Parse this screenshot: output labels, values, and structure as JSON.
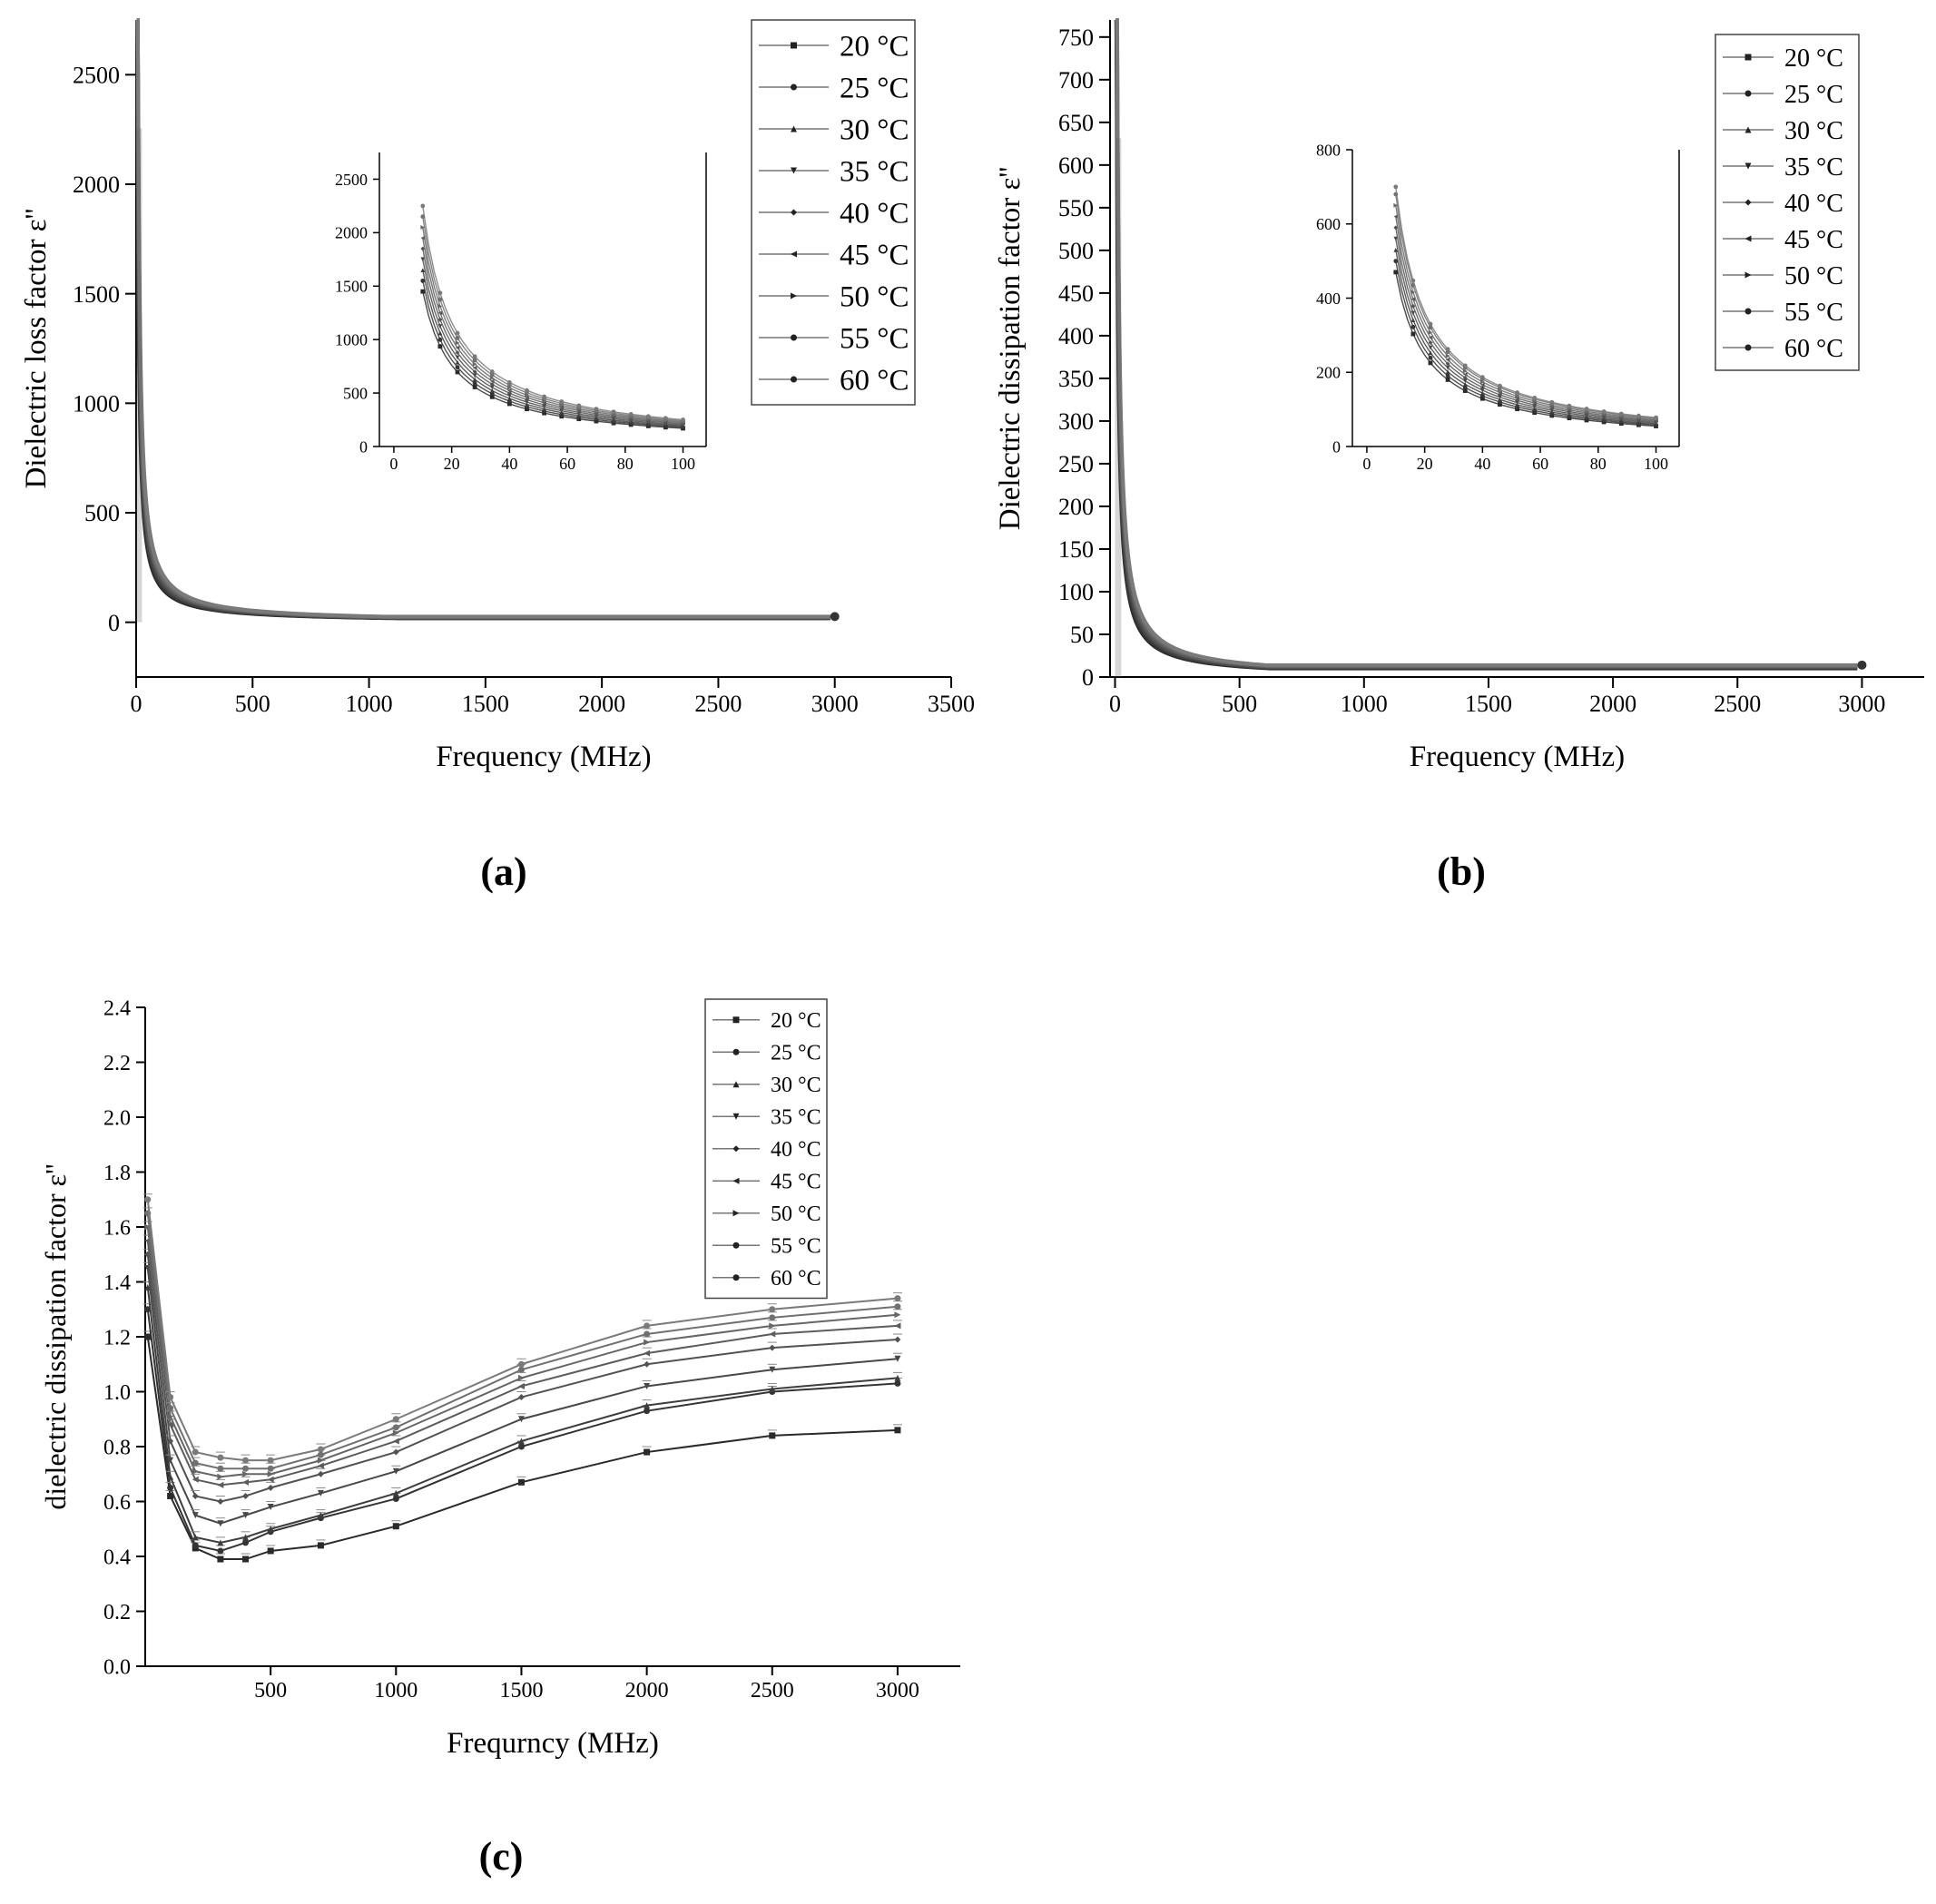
{
  "figure": {
    "panels": [
      "a",
      "b",
      "c"
    ],
    "panel_labels": {
      "a": "(a)",
      "b": "(b)",
      "c": "(c)"
    }
  },
  "temperatures": [
    "20 °C",
    "25 °C",
    "30 °C",
    "35 °C",
    "40 °C",
    "45 °C",
    "50 °C",
    "55 °C",
    "60 °C"
  ],
  "chart_data": [
    {
      "id": "a",
      "type": "line",
      "title": "",
      "panel_label": "(a)",
      "xlabel": "Frequency (MHz)",
      "ylabel": "Dielectric loss factor ε''",
      "xlim": [
        0,
        3500
      ],
      "ylim": [
        -250,
        2750
      ],
      "xticks": [
        0,
        500,
        1000,
        1500,
        2000,
        2500,
        3000,
        3500
      ],
      "yticks": [
        0,
        500,
        1000,
        1500,
        2000,
        2500
      ],
      "legend": [
        "20 °C",
        "25 °C",
        "30 °C",
        "35 °C",
        "40 °C",
        "45 °C",
        "50 °C",
        "55 °C",
        "60 °C"
      ],
      "legend_position": "top-right",
      "model": {
        "family": "power",
        "x_end": 3000,
        "amp10": [
          1450,
          1550,
          1650,
          1750,
          1850,
          1950,
          2050,
          2150,
          2250
        ],
        "amp100": [
          170,
          180,
          190,
          200,
          210,
          220,
          230,
          240,
          250
        ],
        "floor": [
          18,
          19,
          20,
          21,
          22,
          23,
          24,
          25,
          26
        ]
      },
      "inset": {
        "xlim": [
          -5,
          108
        ],
        "ylim": [
          0,
          2750
        ],
        "xticks": [
          0,
          20,
          40,
          60,
          80,
          100
        ],
        "yticks": [
          0,
          500,
          1000,
          1500,
          2000,
          2500
        ],
        "x_range": [
          10,
          100
        ]
      }
    },
    {
      "id": "b",
      "type": "line",
      "title": "",
      "panel_label": "(b)",
      "xlabel": "Frequency (MHz)",
      "ylabel": "Dielectric dissipation factor ε''",
      "xlim": [
        -20,
        3250
      ],
      "ylim": [
        0,
        770
      ],
      "xticks": [
        0,
        500,
        1000,
        1500,
        2000,
        2500,
        3000
      ],
      "yticks": [
        0,
        50,
        100,
        150,
        200,
        250,
        300,
        350,
        400,
        450,
        500,
        550,
        600,
        650,
        700,
        750
      ],
      "legend": [
        "20 °C",
        "25 °C",
        "30 °C",
        "35 °C",
        "40 °C",
        "45 °C",
        "50 °C",
        "55 °C",
        "60 °C"
      ],
      "legend_position": "top-right",
      "model": {
        "family": "power",
        "x_end": 3000,
        "amp10": [
          470,
          500,
          530,
          560,
          590,
          620,
          650,
          680,
          700
        ],
        "amp100": [
          55,
          58,
          61,
          64,
          67,
          70,
          73,
          76,
          78
        ],
        "floor": [
          10,
          10.5,
          11,
          11.5,
          12,
          12.5,
          13,
          13.5,
          14
        ]
      },
      "inset": {
        "xlim": [
          -5,
          108
        ],
        "ylim": [
          0,
          800
        ],
        "xticks": [
          0,
          20,
          40,
          60,
          80,
          100
        ],
        "yticks": [
          0,
          200,
          400,
          600,
          800
        ],
        "x_range": [
          10,
          100
        ]
      }
    },
    {
      "id": "c",
      "type": "line",
      "title": "",
      "panel_label": "(c)",
      "xlabel": "Frequrncy (MHz)",
      "ylabel": "dielectric dissipation factor ε''",
      "xlim": [
        0,
        3250
      ],
      "ylim": [
        0,
        2.4
      ],
      "xticks": [
        500,
        1000,
        1500,
        2000,
        2500,
        3000
      ],
      "yticks": [
        0.0,
        0.2,
        0.4,
        0.6,
        0.8,
        1.0,
        1.2,
        1.4,
        1.6,
        1.8,
        2.0,
        2.2,
        2.4
      ],
      "ytick_labels": [
        "0.0",
        "0.2",
        "0.4",
        "0.6",
        "0.8",
        "1.0",
        "1.2",
        "1.4",
        "1.6",
        "1.8",
        "2.0",
        "2.2",
        "2.4"
      ],
      "legend": [
        "20 °C",
        "25 °C",
        "30 °C",
        "35 °C",
        "40 °C",
        "45 °C",
        "50 °C",
        "55 °C",
        "60 °C"
      ],
      "legend_position": "top-right",
      "series": [
        {
          "name": "20 °C",
          "x": [
            10,
            100,
            200,
            300,
            400,
            500,
            700,
            1000,
            1500,
            2000,
            2500,
            3000
          ],
          "values": [
            1.2,
            0.62,
            0.43,
            0.39,
            0.39,
            0.42,
            0.44,
            0.51,
            0.67,
            0.78,
            0.84,
            0.86
          ]
        },
        {
          "name": "25 °C",
          "x": [
            10,
            100,
            200,
            300,
            400,
            500,
            700,
            1000,
            1500,
            2000,
            2500,
            3000
          ],
          "values": [
            1.3,
            0.65,
            0.44,
            0.42,
            0.45,
            0.49,
            0.54,
            0.61,
            0.8,
            0.93,
            1.0,
            1.03
          ]
        },
        {
          "name": "30 °C",
          "x": [
            10,
            100,
            200,
            300,
            400,
            500,
            700,
            1000,
            1500,
            2000,
            2500,
            3000
          ],
          "values": [
            1.38,
            0.69,
            0.47,
            0.45,
            0.47,
            0.5,
            0.55,
            0.63,
            0.82,
            0.95,
            1.01,
            1.05
          ]
        },
        {
          "name": "35 °C",
          "x": [
            10,
            100,
            200,
            300,
            400,
            500,
            700,
            1000,
            1500,
            2000,
            2500,
            3000
          ],
          "values": [
            1.45,
            0.75,
            0.55,
            0.52,
            0.55,
            0.58,
            0.63,
            0.71,
            0.9,
            1.02,
            1.08,
            1.12
          ]
        },
        {
          "name": "40 °C",
          "x": [
            10,
            100,
            200,
            300,
            400,
            500,
            700,
            1000,
            1500,
            2000,
            2500,
            3000
          ],
          "values": [
            1.5,
            0.82,
            0.62,
            0.6,
            0.62,
            0.65,
            0.7,
            0.78,
            0.98,
            1.1,
            1.16,
            1.19
          ]
        },
        {
          "name": "45 °C",
          "x": [
            10,
            100,
            200,
            300,
            400,
            500,
            700,
            1000,
            1500,
            2000,
            2500,
            3000
          ],
          "values": [
            1.55,
            0.88,
            0.68,
            0.66,
            0.67,
            0.68,
            0.73,
            0.82,
            1.02,
            1.14,
            1.21,
            1.24
          ]
        },
        {
          "name": "50 °C",
          "x": [
            10,
            100,
            200,
            300,
            400,
            500,
            700,
            1000,
            1500,
            2000,
            2500,
            3000
          ],
          "values": [
            1.6,
            0.91,
            0.71,
            0.69,
            0.7,
            0.7,
            0.75,
            0.85,
            1.05,
            1.18,
            1.24,
            1.28
          ]
        },
        {
          "name": "55 °C",
          "x": [
            10,
            100,
            200,
            300,
            400,
            500,
            700,
            1000,
            1500,
            2000,
            2500,
            3000
          ],
          "values": [
            1.65,
            0.94,
            0.74,
            0.72,
            0.72,
            0.72,
            0.77,
            0.87,
            1.08,
            1.21,
            1.27,
            1.31
          ]
        },
        {
          "name": "60 °C",
          "x": [
            10,
            100,
            200,
            300,
            400,
            500,
            700,
            1000,
            1500,
            2000,
            2500,
            3000
          ],
          "values": [
            1.7,
            0.98,
            0.78,
            0.76,
            0.75,
            0.75,
            0.79,
            0.9,
            1.1,
            1.24,
            1.3,
            1.34
          ]
        }
      ]
    }
  ]
}
